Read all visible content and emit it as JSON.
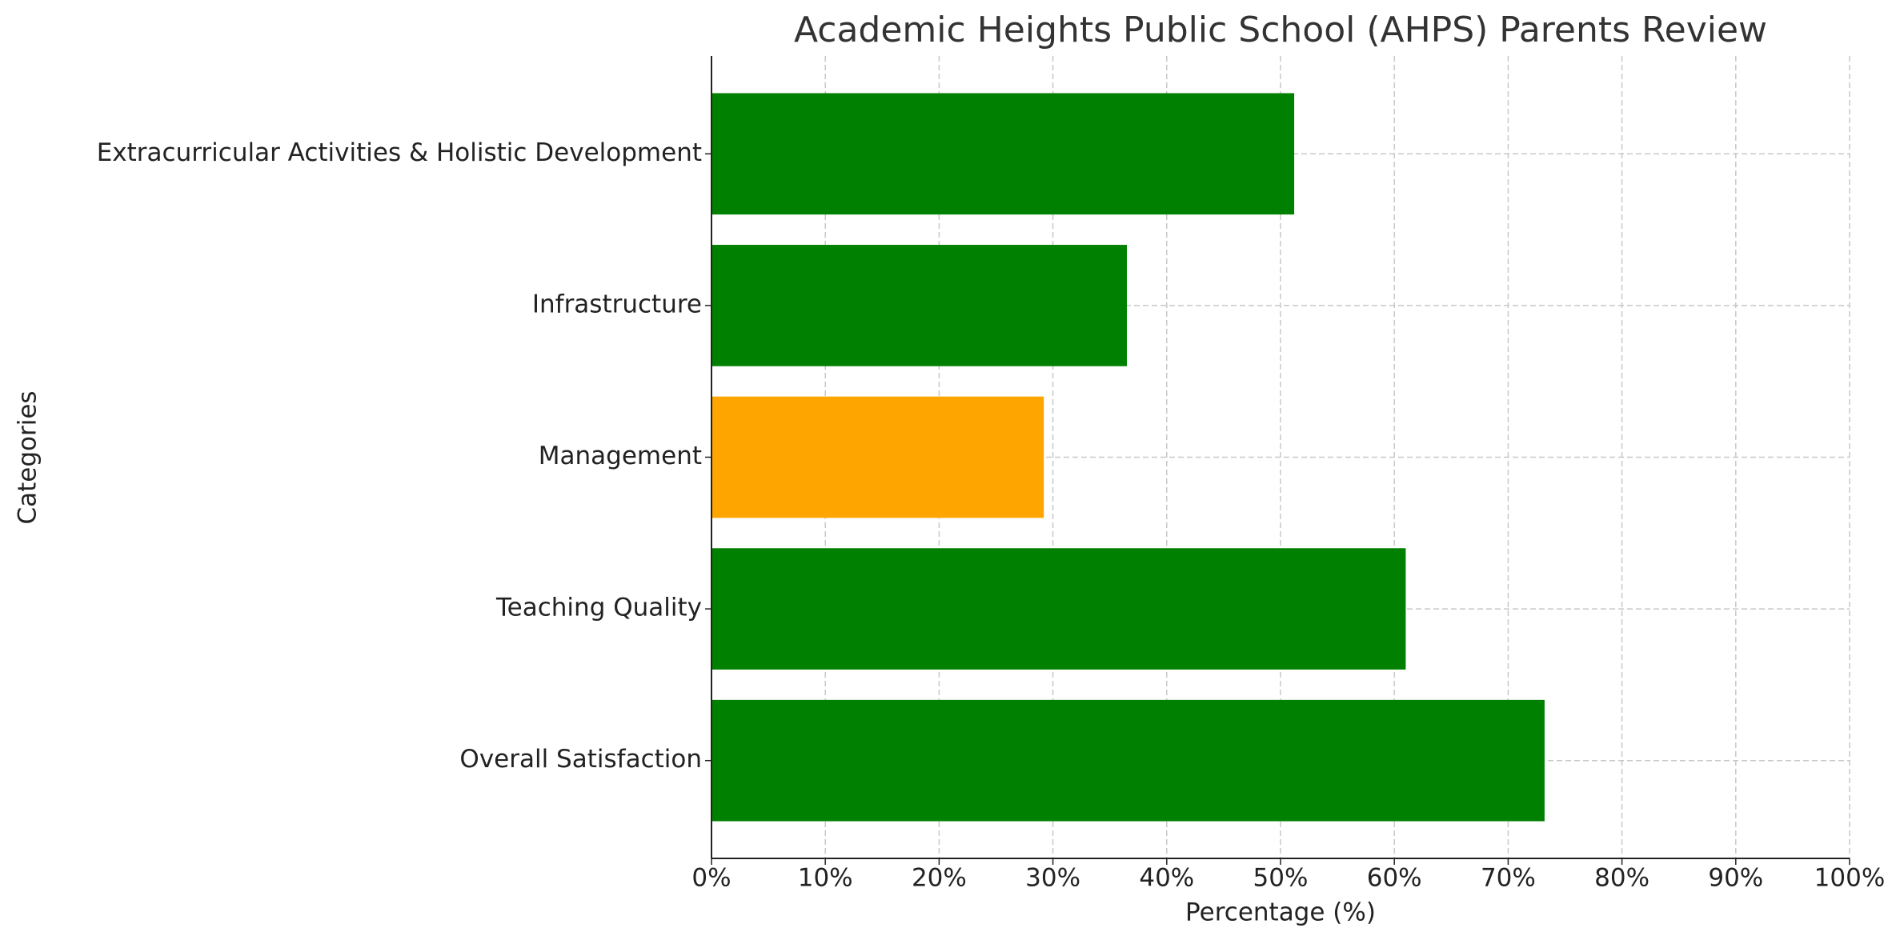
{
  "chart_data": {
    "type": "barh",
    "title": "Academic Heights Public School (AHPS) Parents Review",
    "xlabel": "Percentage (%)",
    "ylabel": "Categories",
    "categories": [
      "Overall Satisfaction",
      "Teaching Quality",
      "Management",
      "Infrastructure",
      "Extracurricular Activities & Holistic Development"
    ],
    "values": [
      73.2,
      61,
      29.2,
      36.5,
      51.2
    ],
    "colors": [
      "#008000",
      "#008000",
      "#ffa500",
      "#008000",
      "#008000"
    ],
    "xlim": [
      0,
      100
    ],
    "xticks": [
      {
        "value": 0,
        "label": "0%"
      },
      {
        "value": 10,
        "label": "10%"
      },
      {
        "value": 20,
        "label": "20%"
      },
      {
        "value": 30,
        "label": "30%"
      },
      {
        "value": 40,
        "label": "40%"
      },
      {
        "value": 50,
        "label": "50%"
      },
      {
        "value": 60,
        "label": "60%"
      },
      {
        "value": 70,
        "label": "70%"
      },
      {
        "value": 80,
        "label": "80%"
      },
      {
        "value": 90,
        "label": "90%"
      },
      {
        "value": 100,
        "label": "100%"
      }
    ],
    "grid": true
  }
}
